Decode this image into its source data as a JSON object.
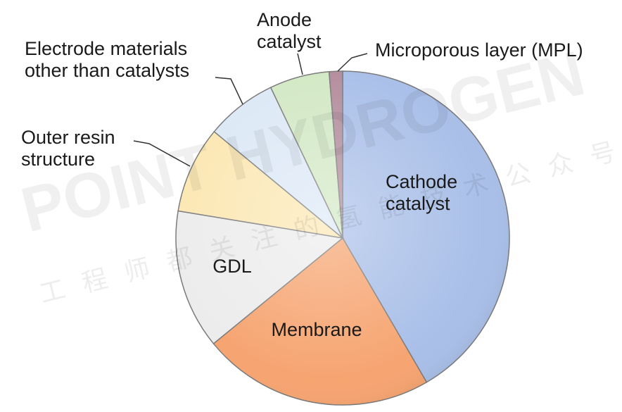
{
  "chart_data": {
    "type": "pie",
    "categories": [
      "Cathode catalyst",
      "Membrane",
      "GDL",
      "Outer resin structure",
      "Electrode materials other than catalysts",
      "Anode catalyst",
      "Microporous layer (MPL)"
    ],
    "values": [
      41.6,
      22.5,
      13.5,
      8.4,
      6.9,
      5.8,
      1.3
    ],
    "colors": [
      "#a9bfe8",
      "#f6a470",
      "#ececec",
      "#fce7b2",
      "#dce8f6",
      "#d2e8c4",
      "#b38c9c"
    ],
    "watermark": "POINT HYDROGEN",
    "watermark_subtitle": "工程师都关注的氢能技术公众号"
  }
}
